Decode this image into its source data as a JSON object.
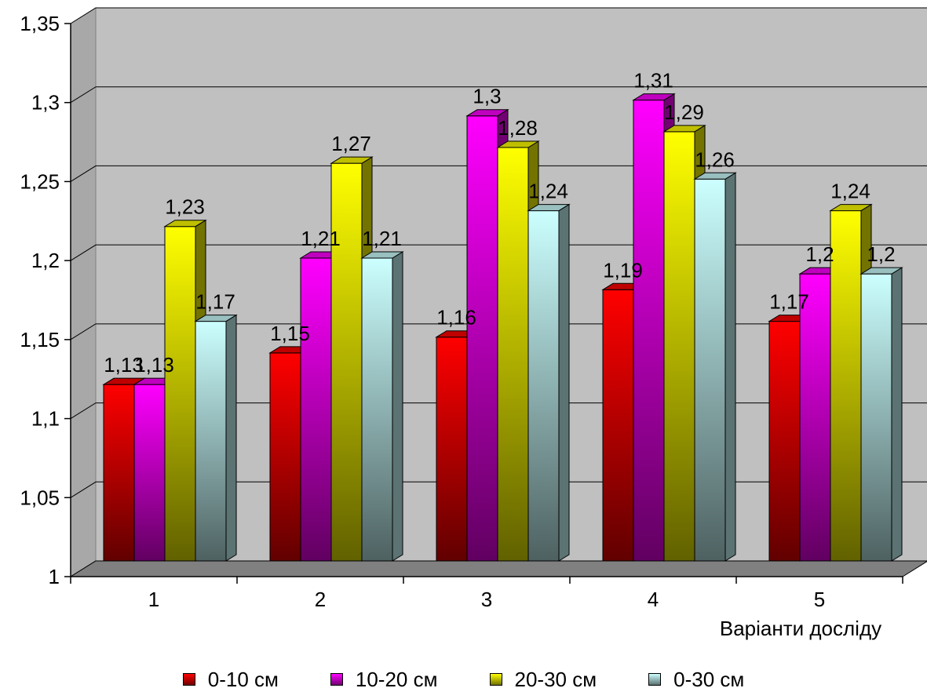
{
  "chart_data": {
    "type": "bar",
    "categories": [
      "1",
      "2",
      "3",
      "4",
      "5"
    ],
    "xlabel": "Варіанти досліду",
    "ylabel": "",
    "ylim": [
      1,
      1.35
    ],
    "yticks": [
      "1",
      "1,05",
      "1,1",
      "1,15",
      "1,2",
      "1,25",
      "1,3",
      "1,35"
    ],
    "grid": true,
    "legend_position": "bottom",
    "series": [
      {
        "name": "0-10 см",
        "color": "#ff0000",
        "values": [
          1.13,
          1.15,
          1.16,
          1.19,
          1.17
        ],
        "labels": [
          "1,13",
          "1,15",
          "1,16",
          "1,19",
          "1,17"
        ]
      },
      {
        "name": "10-20 см",
        "color": "#ff00ff",
        "values": [
          1.13,
          1.21,
          1.3,
          1.31,
          1.2
        ],
        "labels": [
          "1,13",
          "1,21",
          "1,3",
          "1,31",
          "1,2"
        ]
      },
      {
        "name": "20-30 см",
        "color": "#ffff00",
        "values": [
          1.23,
          1.27,
          1.28,
          1.29,
          1.24
        ],
        "labels": [
          "1,23",
          "1,27",
          "1,28",
          "1,29",
          "1,24"
        ]
      },
      {
        "name": "0-30 см",
        "color": "#ccffff",
        "values": [
          1.17,
          1.21,
          1.24,
          1.26,
          1.2
        ],
        "labels": [
          "1,17",
          "1,21",
          "1,24",
          "1,26",
          "1,2"
        ]
      }
    ]
  }
}
